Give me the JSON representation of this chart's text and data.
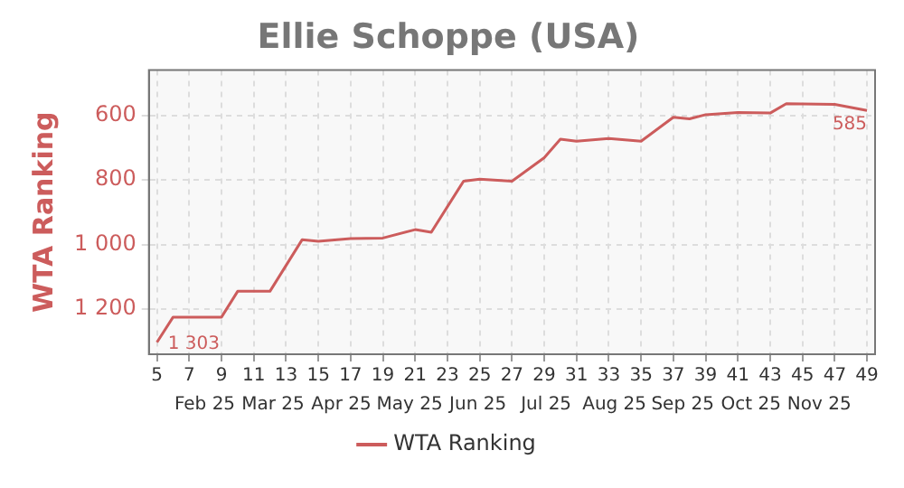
{
  "chart_data": {
    "type": "line",
    "title": "Ellie Schoppe (USA)",
    "ylabel": "WTA Ranking",
    "x": [
      5,
      6,
      9,
      10,
      12,
      14,
      15,
      17,
      19,
      21,
      22,
      24,
      25,
      27,
      29,
      30,
      31,
      33,
      35,
      37,
      38,
      39,
      41,
      43,
      44,
      47,
      49
    ],
    "series": [
      {
        "name": "WTA Ranking",
        "color": "#cc5c5c",
        "values": [
          1303,
          1225,
          1225,
          1145,
          1145,
          985,
          990,
          982,
          980,
          954,
          962,
          804,
          798,
          804,
          731,
          674,
          680,
          672,
          680,
          606,
          611,
          598,
          591,
          593,
          564,
          566,
          585
        ],
        "value_labels": [
          "1 303",
          null,
          null,
          null,
          null,
          null,
          null,
          null,
          null,
          null,
          null,
          null,
          null,
          null,
          null,
          null,
          null,
          null,
          null,
          null,
          null,
          null,
          null,
          null,
          null,
          null,
          "585"
        ]
      }
    ],
    "xlim": [
      4.5,
      49.5
    ],
    "xticks": [
      5,
      7,
      9,
      11,
      13,
      15,
      17,
      19,
      21,
      23,
      25,
      27,
      29,
      31,
      33,
      35,
      37,
      39,
      41,
      43,
      45,
      47,
      49
    ],
    "annotations": [
      "Feb 25",
      "Mar 25",
      "Apr 25",
      "May 25",
      "Jun 25",
      "Jul 25",
      "Aug 25",
      "Sep 25",
      "Oct 25",
      "Nov 25"
    ],
    "ylim": [
      1340,
      460
    ],
    "yticks": [
      600,
      800,
      {
        "value": 1000,
        "label": "1 000"
      },
      {
        "value": 1200,
        "label": "1 200"
      }
    ],
    "grid": true,
    "legend": "bottom",
    "marker": "none",
    "line_style": "solid"
  }
}
